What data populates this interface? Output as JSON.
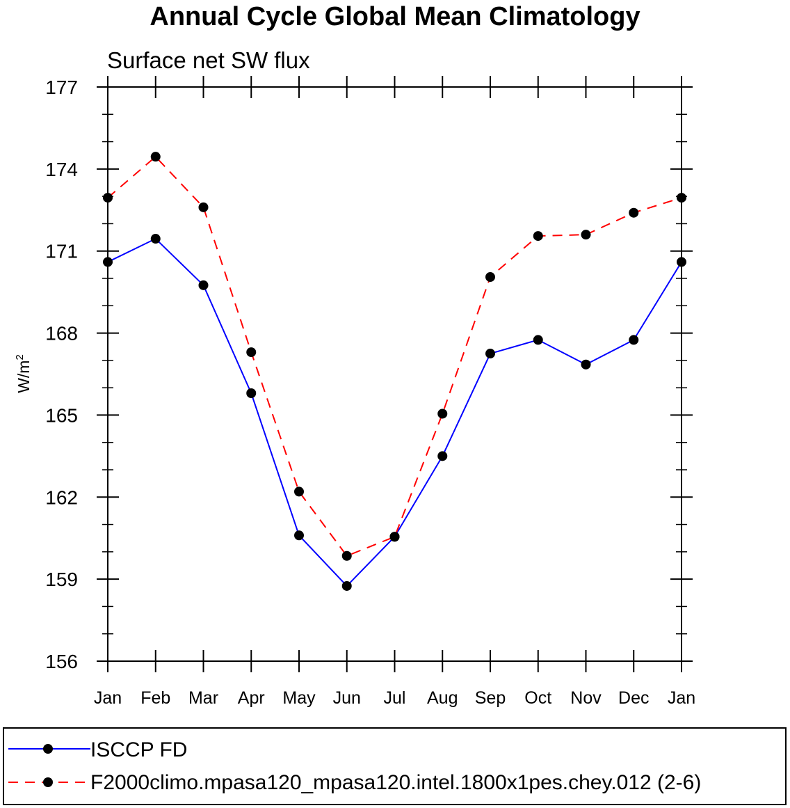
{
  "chart_data": {
    "type": "line",
    "title": "Annual Cycle Global Mean Climatology",
    "subtitle": "Surface net SW flux",
    "ylabel": "W/m",
    "ylabel_sup": "2",
    "xlabel": "",
    "categories": [
      "Jan",
      "Feb",
      "Mar",
      "Apr",
      "May",
      "Jun",
      "Jul",
      "Aug",
      "Sep",
      "Oct",
      "Nov",
      "Dec",
      "Jan"
    ],
    "ylim": [
      156,
      177
    ],
    "yticks": [
      156,
      159,
      162,
      165,
      168,
      171,
      174,
      177
    ],
    "yticks_minor_step": 1,
    "series": [
      {
        "name": "ISCCP FD",
        "color": "#0000ff",
        "dash": "solid",
        "values": [
          170.6,
          171.45,
          169.75,
          165.8,
          160.6,
          158.75,
          160.55,
          163.5,
          167.25,
          167.75,
          166.85,
          167.75,
          170.6
        ]
      },
      {
        "name": "F2000climo.mpasa120_mpasa120.intel.1800x1pes.chey.012 (2-6)",
        "color": "#ff0000",
        "dash": "dashed",
        "values": [
          172.95,
          174.45,
          172.6,
          167.3,
          162.2,
          159.85,
          160.55,
          165.05,
          170.05,
          171.55,
          171.6,
          172.4,
          172.95
        ]
      }
    ],
    "marker_color": "#000000",
    "legend_position": "bottom"
  }
}
